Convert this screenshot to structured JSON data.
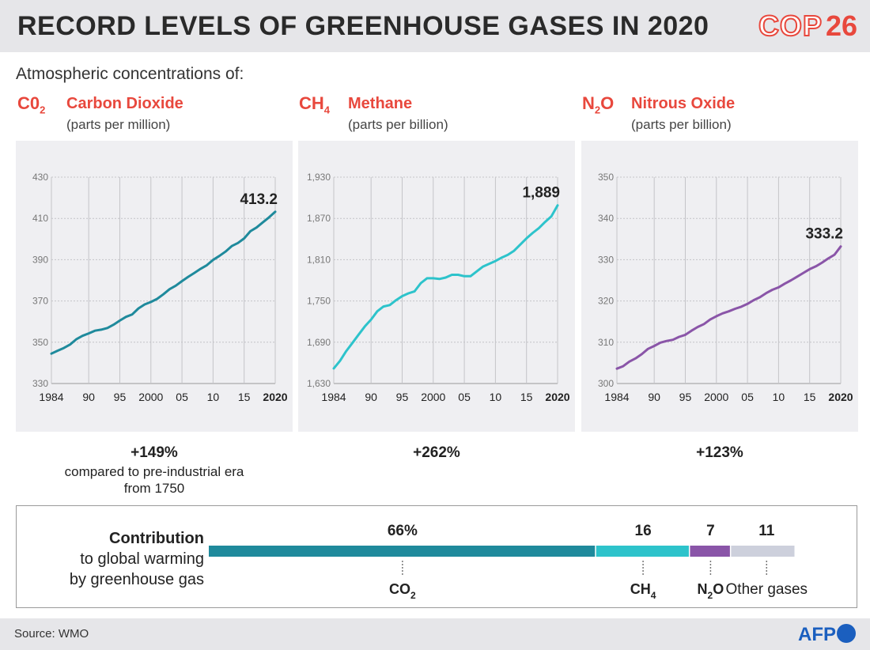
{
  "header": {
    "title": "RECORD LEVELS OF GREENHOUSE GASES IN 2020",
    "logo_text": "COP",
    "logo_number": "26"
  },
  "subtitle": "Atmospheric concentrations of:",
  "colors": {
    "accent": "#e8483d",
    "co2": "#1f8a9c",
    "ch4": "#2dc3cb",
    "n2o": "#8a55a8",
    "other": "#cdd0dc"
  },
  "gases": [
    {
      "formula_main": "C0",
      "formula_sub": "2",
      "formula_end": "",
      "name": "Carbon Dioxide",
      "unit": "(parts per million)",
      "increase": "+149%",
      "increase_note_1": "compared to pre-industrial era",
      "increase_note_2": "from 1750"
    },
    {
      "formula_main": "CH",
      "formula_sub": "4",
      "formula_end": "",
      "name": "Methane",
      "unit": "(parts per billion)",
      "increase": "+262%"
    },
    {
      "formula_main": "N",
      "formula_sub": "2",
      "formula_end": "O",
      "name": "Nitrous Oxide",
      "unit": "(parts per billion)",
      "increase": "+123%"
    }
  ],
  "contribution": {
    "label_bold": "Contribution",
    "label_line2": "to global warming",
    "label_line3": "by greenhouse gas",
    "segments": [
      {
        "value": 66,
        "value_label": "66%",
        "gas_main": "CO",
        "gas_sub": "2",
        "gas_end": "",
        "color": "#1f8a9c"
      },
      {
        "value": 16,
        "value_label": "16",
        "gas_main": "CH",
        "gas_sub": "4",
        "gas_end": "",
        "color": "#2dc3cb"
      },
      {
        "value": 7,
        "value_label": "7",
        "gas_main": "N",
        "gas_sub": "2",
        "gas_end": "O",
        "color": "#8a55a8"
      },
      {
        "value": 11,
        "value_label": "11",
        "gas_main": "Other gases",
        "gas_sub": "",
        "gas_end": "",
        "color": "#cdd0dc"
      }
    ]
  },
  "footer": {
    "source": "Source: WMO",
    "agency": "AFP"
  },
  "chart_data": [
    {
      "type": "line",
      "title": "Carbon Dioxide",
      "ylabel": "parts per million",
      "xlim": [
        1984,
        2020
      ],
      "ylim": [
        330,
        430
      ],
      "y_ticks": [
        330,
        350,
        370,
        390,
        410,
        430
      ],
      "y_tick_labels": [
        "330",
        "350",
        "370",
        "390",
        "410",
        "430"
      ],
      "x_ticks": [
        1984,
        1990,
        1995,
        2000,
        2005,
        2010,
        2015,
        2020
      ],
      "x_tick_labels": [
        "1984",
        "90",
        "95",
        "2000",
        "05",
        "10",
        "15",
        "2020"
      ],
      "end_label": "413.2",
      "color": "#1f8a9c",
      "x": [
        1984,
        1985,
        1986,
        1987,
        1988,
        1989,
        1990,
        1991,
        1992,
        1993,
        1994,
        1995,
        1996,
        1997,
        1998,
        1999,
        2000,
        2001,
        2002,
        2003,
        2004,
        2005,
        2006,
        2007,
        2008,
        2009,
        2010,
        2011,
        2012,
        2013,
        2014,
        2015,
        2016,
        2017,
        2018,
        2019,
        2020
      ],
      "y": [
        344.5,
        345.9,
        347.2,
        348.9,
        351.4,
        353.1,
        354.3,
        355.6,
        356.1,
        356.9,
        358.5,
        360.5,
        362.3,
        363.5,
        366.4,
        368.3,
        369.5,
        371.0,
        373.2,
        375.7,
        377.4,
        379.6,
        381.7,
        383.6,
        385.6,
        387.3,
        389.9,
        391.8,
        393.9,
        396.6,
        398.1,
        400.3,
        403.8,
        405.6,
        408.1,
        410.5,
        413.2
      ]
    },
    {
      "type": "line",
      "title": "Methane",
      "ylabel": "parts per billion",
      "xlim": [
        1984,
        2020
      ],
      "ylim": [
        1630,
        1930
      ],
      "y_ticks": [
        1630,
        1690,
        1750,
        1810,
        1870,
        1930
      ],
      "y_tick_labels": [
        "1,630",
        "1,690",
        "1,750",
        "1,810",
        "1,870",
        "1,930"
      ],
      "x_ticks": [
        1984,
        1990,
        1995,
        2000,
        2005,
        2010,
        2015,
        2020
      ],
      "x_tick_labels": [
        "1984",
        "90",
        "95",
        "2000",
        "05",
        "10",
        "15",
        "2020"
      ],
      "end_label": "1,889",
      "color": "#2dc3cb",
      "x": [
        1984,
        1985,
        1986,
        1987,
        1988,
        1989,
        1990,
        1991,
        1992,
        1993,
        1994,
        1995,
        1996,
        1997,
        1998,
        1999,
        2000,
        2001,
        2002,
        2003,
        2004,
        2005,
        2006,
        2007,
        2008,
        2009,
        2010,
        2011,
        2012,
        2013,
        2014,
        2015,
        2016,
        2017,
        2018,
        2019,
        2020
      ],
      "y": [
        1652,
        1663,
        1677,
        1689,
        1701,
        1713,
        1723,
        1735,
        1742,
        1744,
        1751,
        1757,
        1761,
        1764,
        1776,
        1783,
        1783,
        1782,
        1784,
        1788,
        1788,
        1786,
        1786,
        1793,
        1800,
        1804,
        1808,
        1813,
        1817,
        1823,
        1832,
        1841,
        1849,
        1856,
        1865,
        1873,
        1889
      ]
    },
    {
      "type": "line",
      "title": "Nitrous Oxide",
      "ylabel": "parts per billion",
      "xlim": [
        1984,
        2020
      ],
      "ylim": [
        300,
        350
      ],
      "y_ticks": [
        300,
        310,
        320,
        330,
        340,
        350
      ],
      "y_tick_labels": [
        "300",
        "310",
        "320",
        "330",
        "340",
        "350"
      ],
      "x_ticks": [
        1984,
        1990,
        1995,
        2000,
        2005,
        2010,
        2015,
        2020
      ],
      "x_tick_labels": [
        "1984",
        "90",
        "95",
        "2000",
        "05",
        "10",
        "15",
        "2020"
      ],
      "end_label": "333.2",
      "color": "#8a55a8",
      "x": [
        1984,
        1985,
        1986,
        1987,
        1988,
        1989,
        1990,
        1991,
        1992,
        1993,
        1994,
        1995,
        1996,
        1997,
        1998,
        1999,
        2000,
        2001,
        2002,
        2003,
        2004,
        2005,
        2006,
        2007,
        2008,
        2009,
        2010,
        2011,
        2012,
        2013,
        2014,
        2015,
        2016,
        2017,
        2018,
        2019,
        2020
      ],
      "y": [
        303.6,
        304.2,
        305.3,
        306.1,
        307.1,
        308.4,
        309.1,
        309.9,
        310.3,
        310.6,
        311.3,
        311.8,
        312.8,
        313.7,
        314.4,
        315.5,
        316.3,
        317.0,
        317.5,
        318.1,
        318.6,
        319.3,
        320.2,
        320.9,
        321.9,
        322.7,
        323.3,
        324.2,
        325.0,
        325.9,
        326.8,
        327.7,
        328.4,
        329.3,
        330.3,
        331.2,
        333.2
      ]
    }
  ]
}
